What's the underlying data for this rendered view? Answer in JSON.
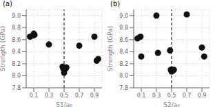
{
  "chart_data": [
    {
      "type": "scatter",
      "title": "(a)",
      "x_label": "S1/a₀",
      "y_label": "Strength (GPa)",
      "x": [
        0.05,
        0.09,
        0.1,
        0.11,
        0.3,
        0.48,
        0.49,
        0.5,
        0.5,
        0.51,
        0.52,
        0.53,
        0.7,
        0.9,
        0.93,
        0.95
      ],
      "values": [
        8.65,
        8.67,
        8.7,
        8.68,
        8.52,
        8.15,
        8.12,
        8.1,
        8.05,
        8.13,
        8.12,
        8.14,
        8.5,
        8.65,
        8.25,
        8.28
      ],
      "vline": 0.5,
      "color": "#111111",
      "grid": true,
      "xlim": [
        0.0,
        1.0
      ],
      "xticks": [
        0.1,
        0.3,
        0.5,
        0.7,
        0.9
      ],
      "ylim": [
        7.8,
        9.1
      ],
      "yticks": [
        7.8,
        {
          "value": 8.0,
          "label": "8.0"
        },
        8.2,
        8.4,
        8.6,
        8.8,
        {
          "value": 9.0,
          "label": "9.0"
        }
      ]
    },
    {
      "type": "scatter",
      "title": "(b)",
      "x_label": "S2/a₀",
      "y_label": "Strength (GPa)",
      "x": [
        0.05,
        0.09,
        0.1,
        0.3,
        0.32,
        0.48,
        0.49,
        0.5,
        0.5,
        0.51,
        0.52,
        0.53,
        0.7,
        0.9,
        0.93
      ],
      "values": [
        8.62,
        8.65,
        8.32,
        9.0,
        8.38,
        8.42,
        8.1,
        8.1,
        8.07,
        8.08,
        8.09,
        8.1,
        9.02,
        8.47,
        8.32
      ],
      "vline": 0.5,
      "color": "#111111",
      "grid": true,
      "xlim": [
        0.0,
        1.0
      ],
      "xticks": [
        0.1,
        0.3,
        0.5,
        0.7,
        0.9
      ],
      "ylim": [
        7.8,
        9.1
      ],
      "yticks": [
        7.8,
        {
          "value": 8.0,
          "label": "8.0"
        },
        8.2,
        8.4,
        8.6,
        8.8,
        {
          "value": 9.0,
          "label": "9.0"
        }
      ]
    }
  ]
}
